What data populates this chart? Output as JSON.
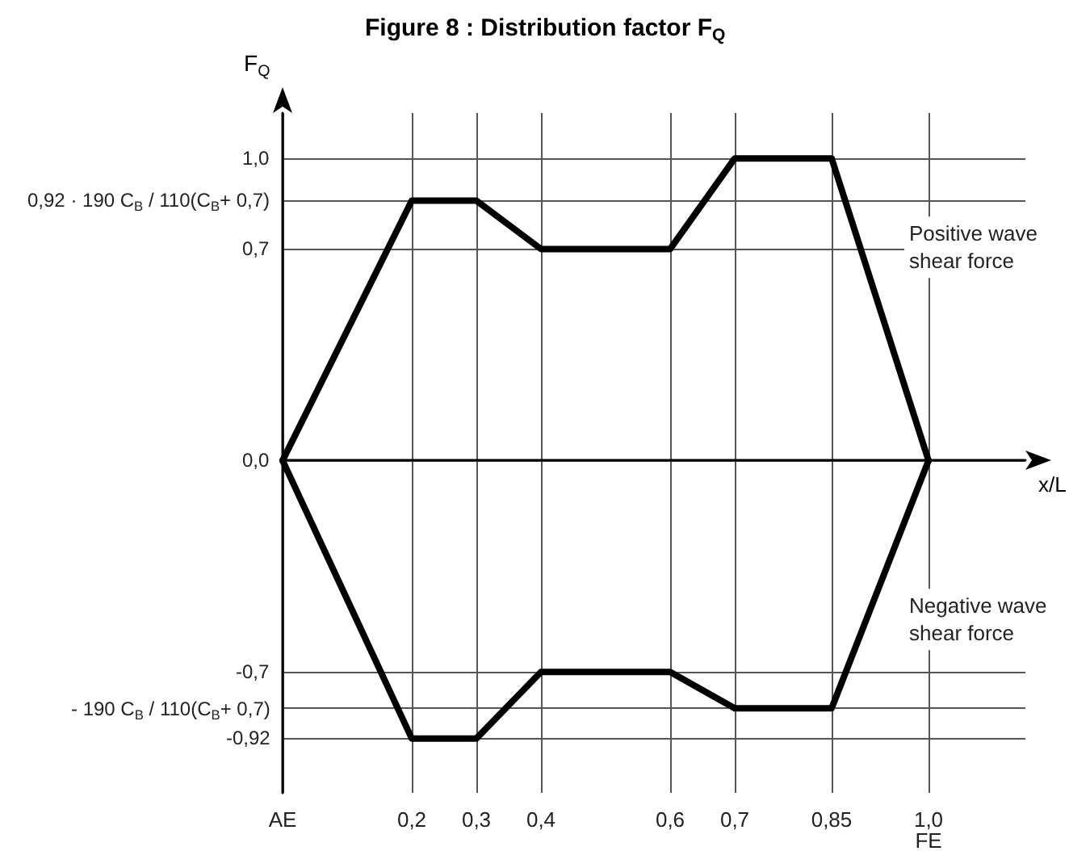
{
  "chart_data": {
    "type": "line",
    "title": "Figure 8 :  Distribution factor F$_{Q}$",
    "xlabel": "x/L",
    "ylabel": "F$_{Q}$",
    "x": [
      0,
      0.2,
      0.3,
      0.4,
      0.6,
      0.7,
      0.85,
      1.0
    ],
    "series": [
      {
        "name": "Positive wave shear force",
        "color": "#000000",
        "values": [
          0,
          0.86,
          0.86,
          0.7,
          0.7,
          1.0,
          1.0,
          0
        ]
      },
      {
        "name": "Negative wave shear force",
        "color": "#000000",
        "values": [
          0,
          -0.92,
          -0.92,
          -0.7,
          -0.7,
          -0.82,
          -0.82,
          0
        ]
      }
    ],
    "xlim": [
      0,
      1.15
    ],
    "ylim": [
      -1.1,
      1.15
    ],
    "xticks": [
      {
        "value": 0,
        "label": "AE"
      },
      {
        "value": 0.2,
        "label": "0,2"
      },
      {
        "value": 0.3,
        "label": "0,3"
      },
      {
        "value": 0.4,
        "label": "0,4"
      },
      {
        "value": 0.6,
        "label": "0,6"
      },
      {
        "value": 0.7,
        "label": "0,7"
      },
      {
        "value": 0.85,
        "label": "0,85"
      },
      {
        "value": 1.0,
        "label": "1,0\nFE"
      }
    ],
    "yticks": [
      {
        "value": -0.92,
        "label": "-0,92"
      },
      {
        "value": -0.82,
        "label": "- 190 C$_{B}$ / 110(C$_{B}$+ 0,7)"
      },
      {
        "value": -0.7,
        "label": "-0,7"
      },
      {
        "value": 0,
        "label": "0,0"
      },
      {
        "value": 0.7,
        "label": "0,7"
      },
      {
        "value": 0.86,
        "label": "0,92 · 190 C$_{B}$ / 110(C$_{B}$+ 0,7)"
      },
      {
        "value": 1.0,
        "label": "1,0"
      }
    ],
    "grid": true,
    "legend": false,
    "marker": "none",
    "line_style": "solid"
  }
}
